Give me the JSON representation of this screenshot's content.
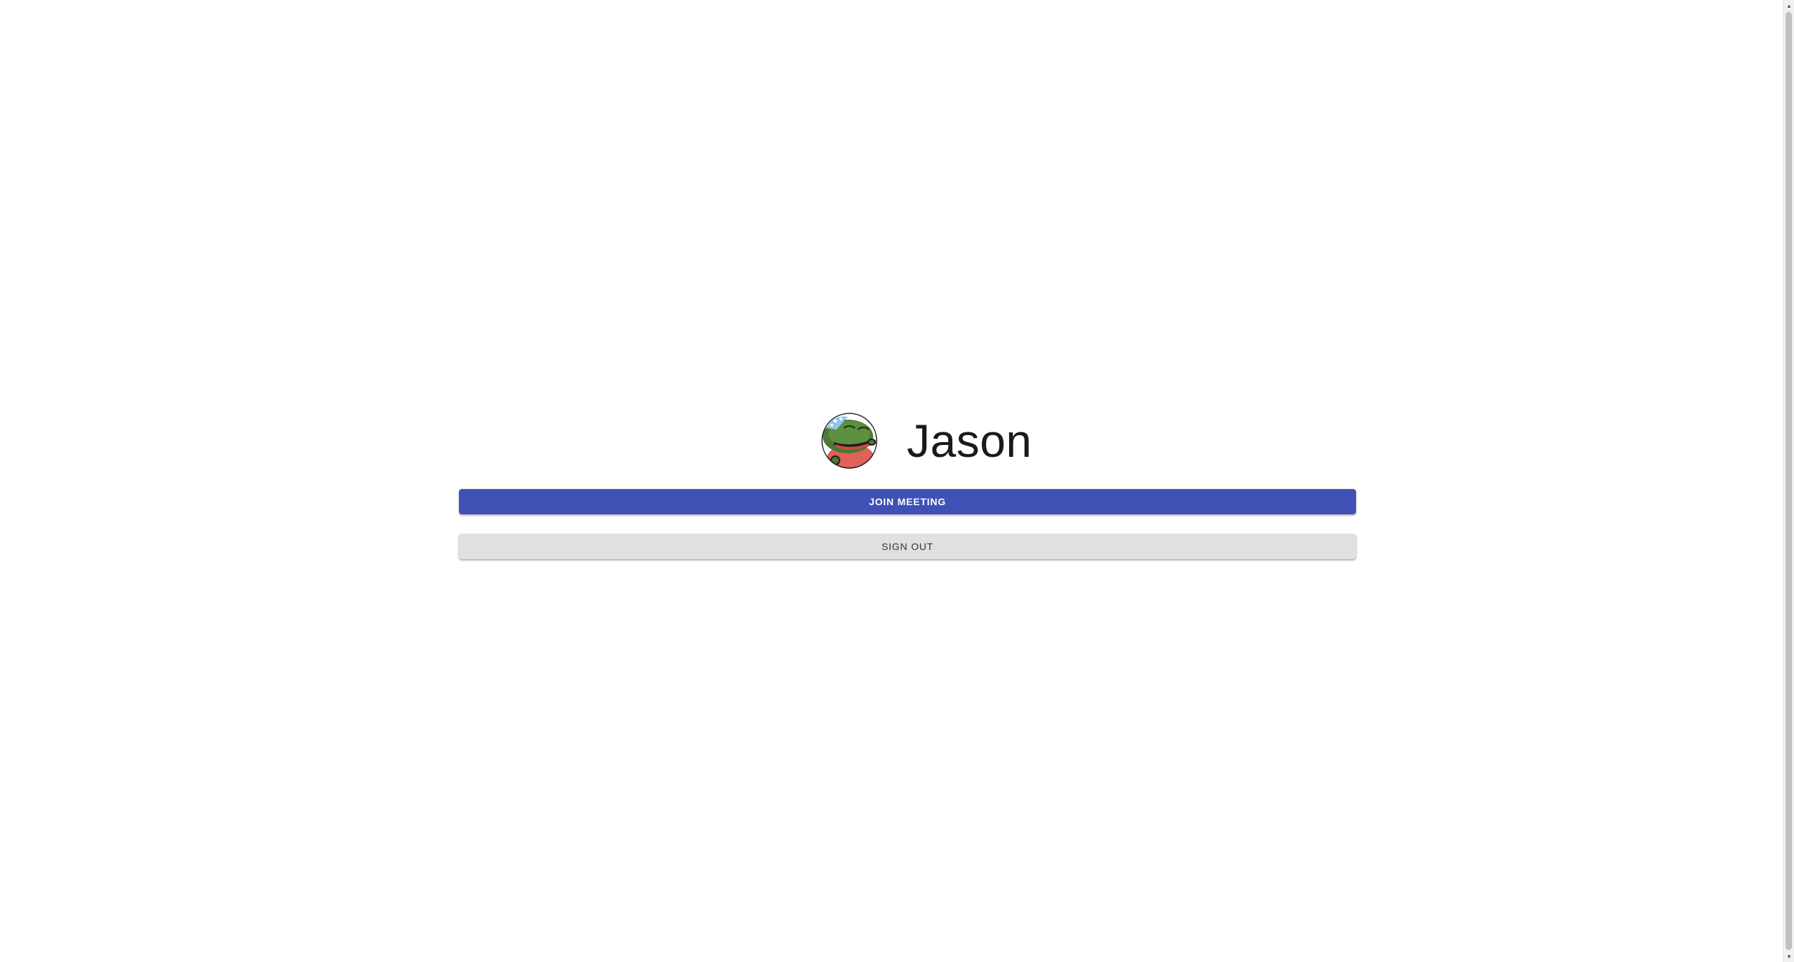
{
  "profile": {
    "avatar_icon": "frog-avatar-icon",
    "name": "Jason"
  },
  "actions": {
    "join_label": "JOIN MEETING",
    "signout_label": "SIGN OUT"
  },
  "colors": {
    "primary": "#3f51b5",
    "secondary_button": "#e0e0e0"
  },
  "scrollbar": {
    "up_icon": "scroll-up-arrow-icon",
    "down_icon": "scroll-down-arrow-icon"
  }
}
